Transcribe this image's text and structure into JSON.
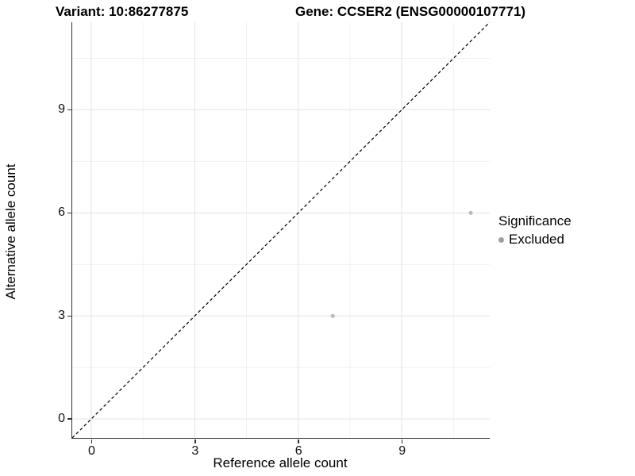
{
  "chart_data": {
    "type": "scatter",
    "title_left": "Variant: 10:86277875",
    "title_right": "Gene: CCSER2 (ENSG00000107771)",
    "xlabel": "Reference allele count",
    "ylabel": "Alternative allele count",
    "xlim": [
      -0.55,
      11.55
    ],
    "ylim": [
      -0.55,
      11.55
    ],
    "xticks": [
      0,
      3,
      6,
      9
    ],
    "yticks": [
      0,
      3,
      6,
      9
    ],
    "minor_ticks": [
      1.5,
      4.5,
      7.5,
      10.5
    ],
    "grid": true,
    "legend_position": "right",
    "identity_line": {
      "style": "dashed",
      "from": -0.55,
      "to": 11.55
    },
    "series": [
      {
        "name": "Excluded",
        "points": [
          {
            "x": 7,
            "y": 3
          },
          {
            "x": 11,
            "y": 6
          }
        ]
      }
    ],
    "legend": {
      "title": "Significance",
      "items": [
        {
          "label": "Excluded"
        }
      ]
    }
  },
  "colors": {
    "point": "#b8b8b8",
    "legend_key": "#9e9e9e",
    "grid_major": "#e3e3e3",
    "grid_minor": "#f1f1f1",
    "axis_line": "#333333",
    "identity_line": "#000000",
    "text": "#000000"
  }
}
